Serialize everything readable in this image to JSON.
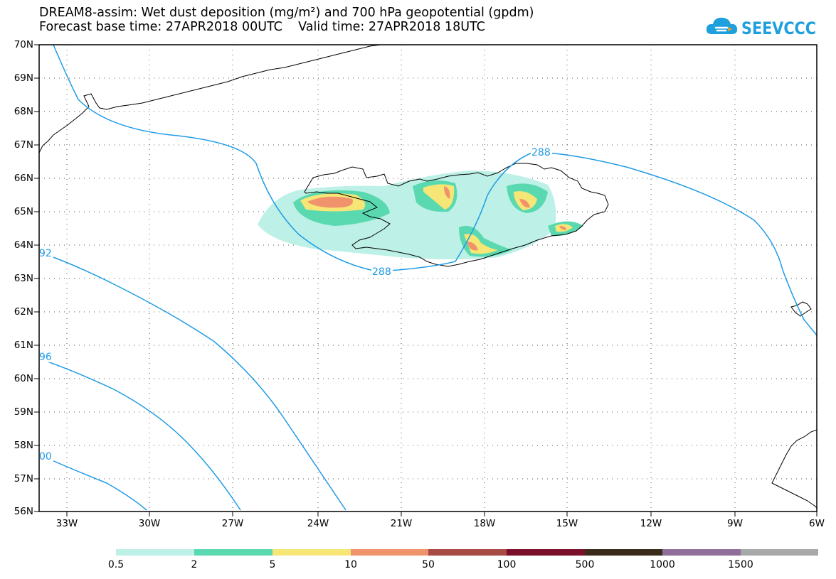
{
  "title": {
    "line1": "DREAM8-assim: Wet dust deposition (mg/m²) and 700 hPa geopotential (gpdm)",
    "line2": "Forecast base time: 27APR2018 00UTC    Valid time: 27APR2018 18UTC"
  },
  "logo": {
    "text": "SEEVCCC",
    "icon": "cloud-icon",
    "color": "#1fa0dc"
  },
  "axes": {
    "lat_labels": [
      "70N",
      "69N",
      "68N",
      "67N",
      "66N",
      "65N",
      "64N",
      "63N",
      "62N",
      "61N",
      "60N",
      "59N",
      "58N",
      "57N",
      "56N"
    ],
    "lon_labels": [
      "33W",
      "30W",
      "27W",
      "24W",
      "21W",
      "18W",
      "15W",
      "12W",
      "9W",
      "6W"
    ]
  },
  "contours": {
    "color": "#1e9be6",
    "labels": [
      "288",
      "288",
      "92",
      "96",
      "00"
    ]
  },
  "legend": {
    "colors": [
      "#bdf0e6",
      "#5ad9b0",
      "#f5e676",
      "#f0936c",
      "#a84a44",
      "#7a0f2c",
      "#3a2a1a",
      "#8f6f9a",
      "#a8a8a8"
    ],
    "labels": [
      "0.5",
      "2",
      "5",
      "10",
      "50",
      "100",
      "500",
      "1000",
      "1500"
    ]
  }
}
